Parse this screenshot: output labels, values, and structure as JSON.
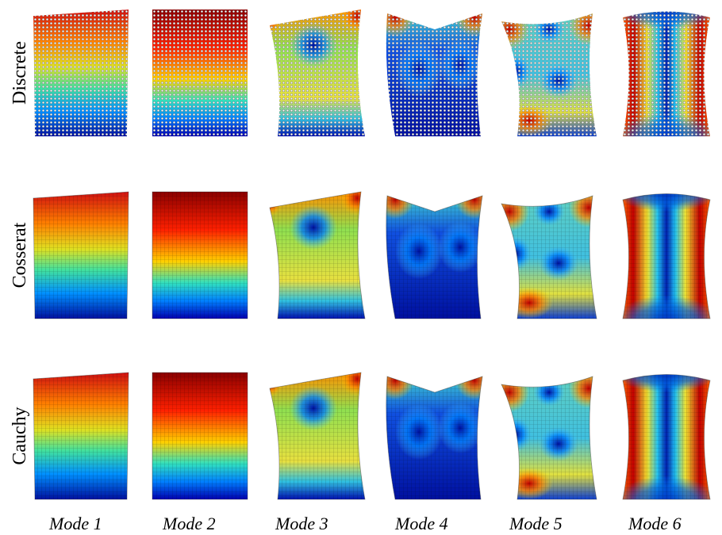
{
  "row_labels": [
    "Discrete",
    "Cosserat",
    "Cauchy"
  ],
  "column_labels": [
    "Mode 1",
    "Mode 2",
    "Mode 3",
    "Mode 4",
    "Mode 5",
    "Mode 6"
  ]
}
